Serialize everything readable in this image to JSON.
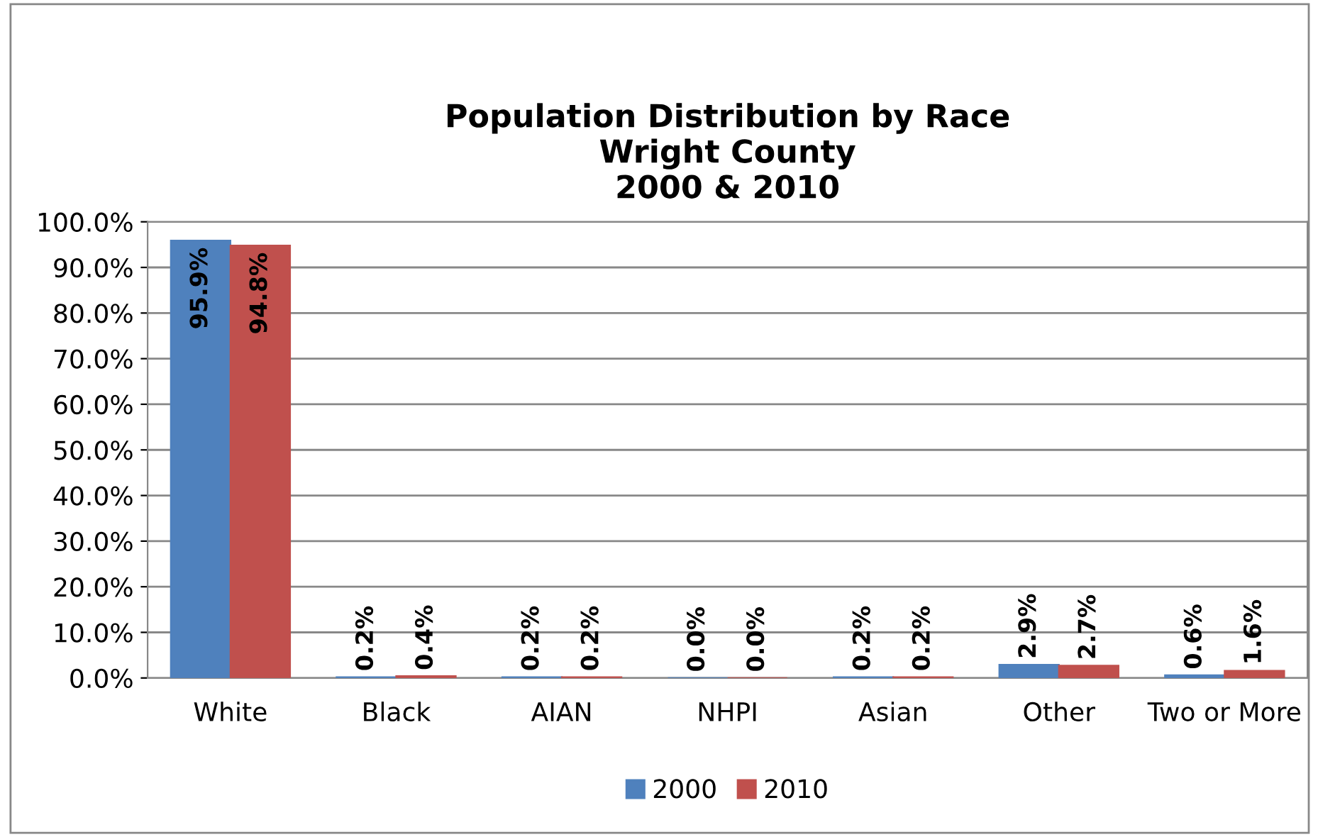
{
  "chart_data": {
    "type": "bar",
    "title": "Population Distribution by Race\nWright County\n2000 & 2010",
    "categories": [
      "White",
      "Black",
      "AIAN",
      "NHPI",
      "Asian",
      "Other",
      "Two or More"
    ],
    "series": [
      {
        "name": "2000",
        "color": "#4f81bd",
        "values": [
          95.9,
          0.2,
          0.2,
          0.0,
          0.2,
          2.9,
          0.6
        ],
        "value_labels": [
          "95.9%",
          "0.2%",
          "0.2%",
          "0.0%",
          "0.2%",
          "2.9%",
          "0.6%"
        ]
      },
      {
        "name": "2010",
        "color": "#c0504d",
        "values": [
          94.8,
          0.4,
          0.2,
          0.0,
          0.2,
          2.7,
          1.6
        ],
        "value_labels": [
          "94.8%",
          "0.4%",
          "0.2%",
          "0.0%",
          "0.2%",
          "2.7%",
          "1.6%"
        ]
      }
    ],
    "ylim": [
      0,
      100
    ],
    "yticks": [
      {
        "value": 0,
        "label": "0.0%"
      },
      {
        "value": 10,
        "label": "10.0%"
      },
      {
        "value": 20,
        "label": "20.0%"
      },
      {
        "value": 30,
        "label": "30.0%"
      },
      {
        "value": 40,
        "label": "40.0%"
      },
      {
        "value": 50,
        "label": "50.0%"
      },
      {
        "value": 60,
        "label": "60.0%"
      },
      {
        "value": 70,
        "label": "70.0%"
      },
      {
        "value": 80,
        "label": "80.0%"
      },
      {
        "value": 90,
        "label": "90.0%"
      },
      {
        "value": 100,
        "label": "100.0%"
      }
    ],
    "grid": "y",
    "legend": "bottom"
  }
}
